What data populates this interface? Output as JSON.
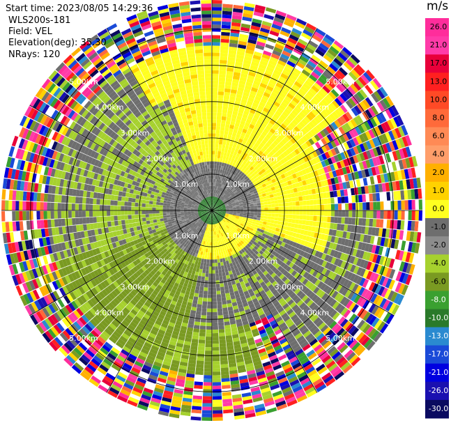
{
  "header": {
    "start_time": "Start time: 2023/08/05 14:29:36",
    "site": "WLS200s-181",
    "field": "Field: VEL",
    "elevation": "Elevation(deg): 35.30",
    "nrays": "NRays: 120"
  },
  "colorbar": {
    "unit": "m/s",
    "ticks": [
      "26.0",
      "21.0",
      "17.0",
      "13.0",
      "10.0",
      "8.0",
      "6.0",
      "4.0",
      "2.0",
      "1.0",
      "0.0",
      "-1.0",
      "-2.0",
      "-4.0",
      "-6.0",
      "-8.0",
      "-10.0",
      "-13.0",
      "-17.0",
      "-21.0",
      "-26.0",
      "-30.0"
    ],
    "colors": [
      "#ff2d9b",
      "#ff3ba8",
      "#e8003a",
      "#ff2020",
      "#ff4a26",
      "#ff6a3a",
      "#ff8a55",
      "#ff9e6a",
      "#ffb000",
      "#ffd200",
      "#ffff20",
      "#6e6e6e",
      "#8c8c8c",
      "#a6d12e",
      "#7a9a22",
      "#3aa030",
      "#2a7a2a",
      "#2a8ad0",
      "#1a4ad8",
      "#0000e0",
      "#1a10b0",
      "#0a0a60"
    ]
  },
  "chart_data": {
    "type": "heatmap",
    "projection": "polar-ppi",
    "nrays": 120,
    "range_rings_km": [
      1.0,
      2.0,
      3.0,
      4.0,
      5.0
    ],
    "ring_labels": [
      "1.0km",
      "2.00km",
      "3.00km",
      "4.00km",
      "5.00km"
    ],
    "value_range": [
      -30.0,
      26.0
    ],
    "value_unit": "m/s"
  }
}
